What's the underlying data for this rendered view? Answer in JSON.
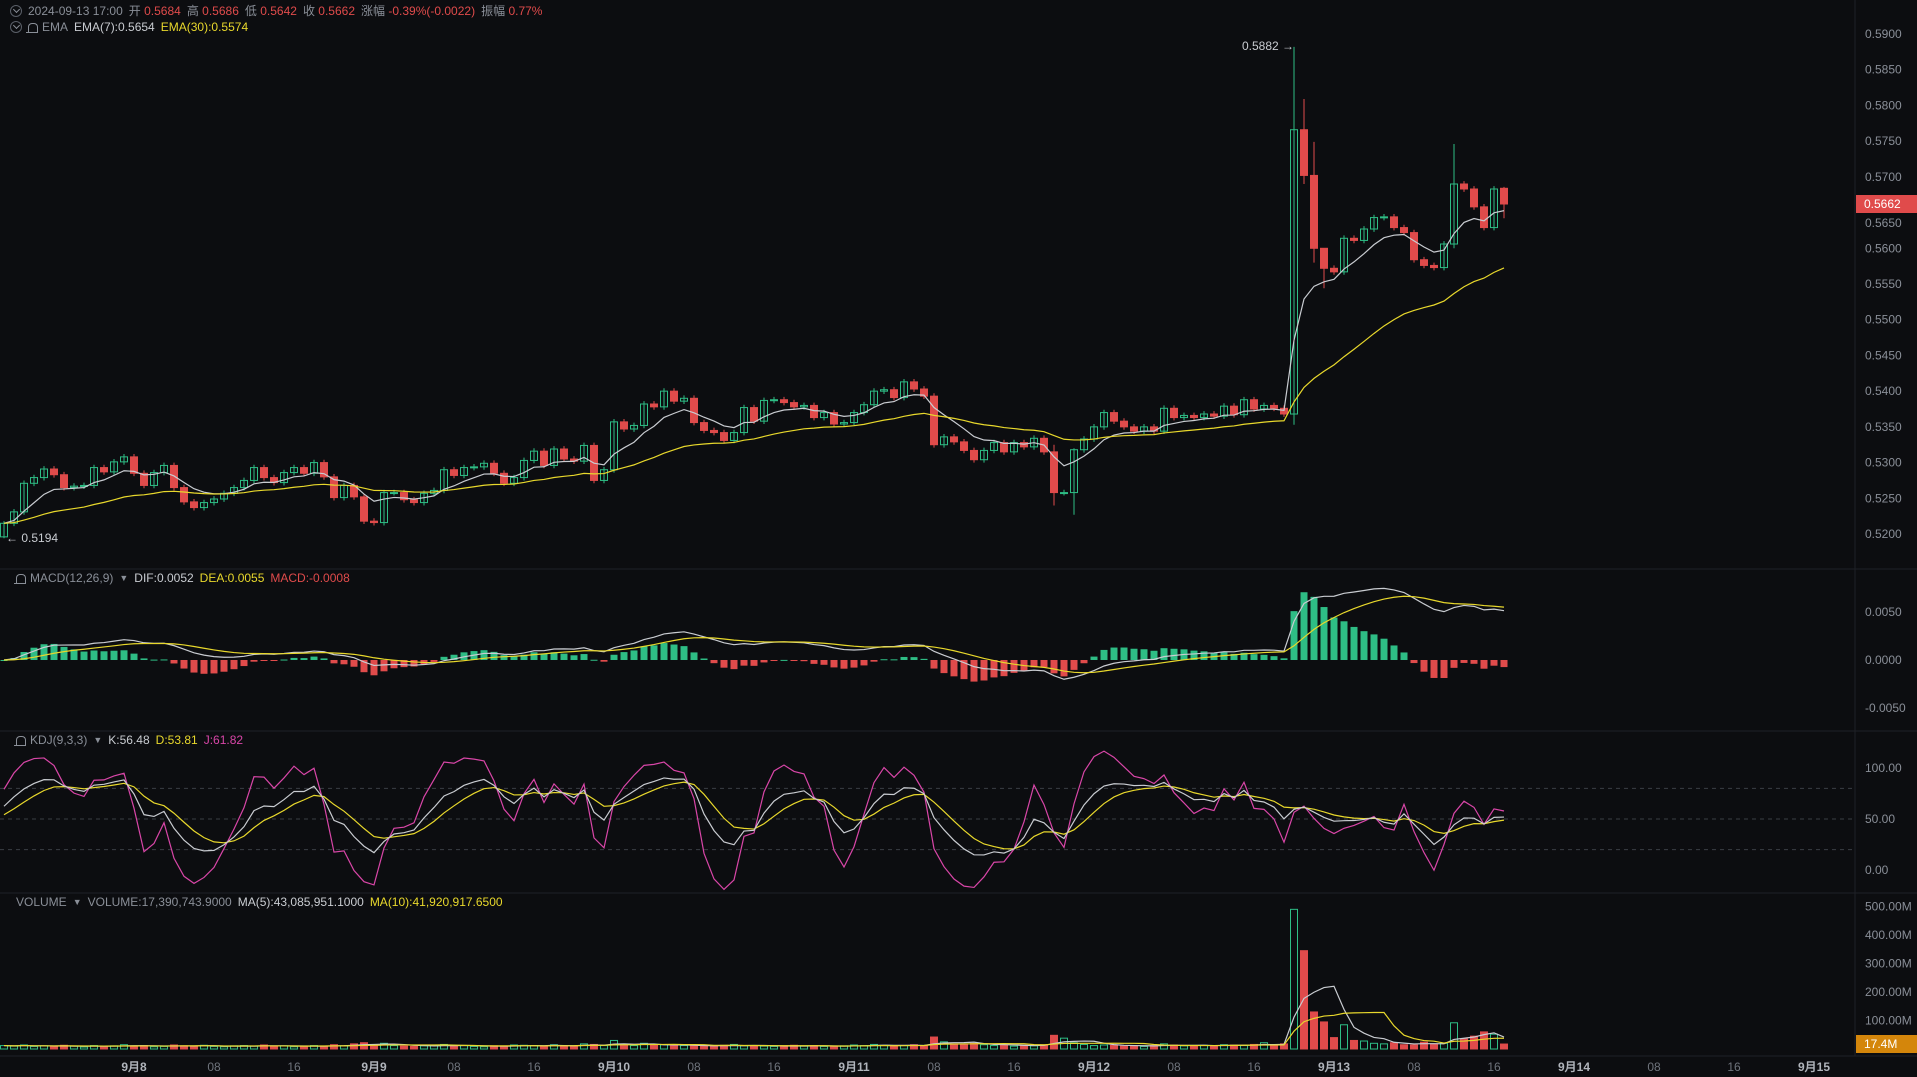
{
  "header": {
    "datetime": "2024-09-13 17:00",
    "open_label": "开",
    "open": "0.5684",
    "high_label": "高",
    "high": "0.5686",
    "low_label": "低",
    "low": "0.5642",
    "close_label": "收",
    "close": "0.5662",
    "change_label": "涨幅",
    "change": "-0.39%(-0.0022)",
    "amplitude_label": "振幅",
    "amplitude": "0.77%"
  },
  "ema": {
    "label": "EMA",
    "ema7": "EMA(7):0.5654",
    "ema30": "EMA(30):0.5574"
  },
  "macd": {
    "label": "MACD(12,26,9)",
    "dif": "DIF:0.0052",
    "dea": "DEA:0.0055",
    "macd": "MACD:-0.0008"
  },
  "kdj": {
    "label": "KDJ(9,3,3)",
    "k": "K:56.48",
    "d": "D:53.81",
    "j": "J:61.82"
  },
  "volume": {
    "label": "VOLUME",
    "volume": "VOLUME:17,390,743.9000",
    "ma5": "MA(5):43,085,951.1000",
    "ma10": "MA(10):41,920,917.6500"
  },
  "price_axis": {
    "current_price": "0.5662",
    "max_label": "0.5882 →",
    "min_label": "← 0.5194"
  },
  "volume_axis": {
    "current": "17.4M"
  },
  "colors": {
    "background": "#0c0d10",
    "up": "#2ebd85",
    "down": "#e04b4b",
    "ema7": "#c9ccd1",
    "ema30": "#e8d82c",
    "k": "#c9ccd1",
    "d": "#e8d82c",
    "j": "#d946a8",
    "volume_tag": "#d4860b",
    "price_tag": "#e04b4b"
  },
  "icons": [
    "chevron-circle-icon",
    "bell-icon",
    "caret-down-icon"
  ],
  "chart_data": {
    "type": "candlestick",
    "interval": "1h",
    "first_open": 0.5196,
    "last_open": 0.5684,
    "close": [
      0.5215,
      0.5231,
      0.5271,
      0.5279,
      0.5291,
      0.5283,
      0.5265,
      0.5267,
      0.5268,
      0.5293,
      0.5287,
      0.5301,
      0.5308,
      0.5285,
      0.5268,
      0.5286,
      0.5296,
      0.5265,
      0.5245,
      0.5237,
      0.5244,
      0.5249,
      0.5257,
      0.5265,
      0.5275,
      0.5293,
      0.5279,
      0.5272,
      0.5286,
      0.5293,
      0.5285,
      0.53,
      0.528,
      0.5251,
      0.5268,
      0.5252,
      0.5218,
      0.5216,
      0.5258,
      0.5258,
      0.5248,
      0.5244,
      0.5257,
      0.5261,
      0.529,
      0.5282,
      0.5293,
      0.5294,
      0.5299,
      0.5285,
      0.5271,
      0.5279,
      0.5303,
      0.5316,
      0.5296,
      0.5319,
      0.5305,
      0.5302,
      0.5324,
      0.5275,
      0.529,
      0.5357,
      0.5347,
      0.5352,
      0.5382,
      0.5378,
      0.54,
      0.5386,
      0.539,
      0.5356,
      0.5345,
      0.5342,
      0.5331,
      0.5342,
      0.5377,
      0.5358,
      0.5387,
      0.5388,
      0.5384,
      0.5378,
      0.538,
      0.5363,
      0.537,
      0.5354,
      0.5356,
      0.537,
      0.5381,
      0.54,
      0.5402,
      0.5391,
      0.5413,
      0.5403,
      0.5393,
      0.5325,
      0.5336,
      0.5329,
      0.5317,
      0.5304,
      0.5317,
      0.5328,
      0.5315,
      0.5328,
      0.5322,
      0.5334,
      0.5315,
      0.5258,
      0.5258,
      0.5318,
      0.5333,
      0.535,
      0.537,
      0.5358,
      0.535,
      0.5344,
      0.535,
      0.5344,
      0.5376,
      0.5363,
      0.5366,
      0.5363,
      0.5368,
      0.5365,
      0.5379,
      0.5367,
      0.5388,
      0.5375,
      0.538,
      0.5376,
      0.5368,
      0.5766,
      0.5702,
      0.56,
      0.5572,
      0.5567,
      0.5614,
      0.5611,
      0.5627,
      0.5643,
      0.5644,
      0.5629,
      0.5622,
      0.5584,
      0.5576,
      0.5573,
      0.5606,
      0.569,
      0.5683,
      0.5658,
      0.5629,
      0.5683,
      0.5662
    ],
    "wicks": [
      [
        0,
        0.5218,
        0.5194
      ],
      [
        105,
        0.5325,
        0.524
      ],
      [
        107,
        0.532,
        0.5227
      ],
      [
        129,
        0.5882,
        0.5353
      ],
      [
        130,
        0.5809,
        0.569
      ],
      [
        131,
        0.5749,
        0.558
      ],
      [
        132,
        0.56,
        0.5544
      ],
      [
        145,
        0.5746,
        0.56
      ],
      [
        150,
        0.5686,
        0.5642
      ]
    ],
    "volume_millions": [
      12,
      10,
      14,
      9,
      11,
      8,
      13,
      10,
      7,
      12,
      9,
      11,
      15,
      10,
      12,
      8,
      9,
      14,
      11,
      10,
      13,
      9,
      8,
      11,
      12,
      10,
      14,
      9,
      11,
      8,
      10,
      12,
      9,
      15,
      11,
      18,
      22,
      14,
      20,
      12,
      10,
      9,
      11,
      13,
      16,
      10,
      12,
      9,
      8,
      11,
      10,
      14,
      13,
      12,
      9,
      15,
      11,
      10,
      18,
      16,
      12,
      30,
      14,
      12,
      20,
      13,
      15,
      11,
      12,
      14,
      10,
      9,
      13,
      16,
      11,
      12,
      10,
      9,
      11,
      13,
      10,
      12,
      9,
      8,
      11,
      14,
      12,
      16,
      13,
      10,
      12,
      15,
      11,
      42,
      25,
      18,
      16,
      20,
      15,
      12,
      14,
      10,
      13,
      11,
      15,
      48,
      38,
      22,
      16,
      12,
      14,
      13,
      10,
      11,
      9,
      12,
      18,
      14,
      11,
      10,
      13,
      12,
      15,
      14,
      12,
      16,
      22,
      13,
      18,
      490,
      345,
      130,
      95,
      40,
      85,
      30,
      28,
      20,
      18,
      22,
      15,
      14,
      24,
      18,
      20,
      92,
      35,
      45,
      60,
      52,
      17.4
    ],
    "price_ticks": [
      "0.5900",
      "0.5850",
      "0.5800",
      "0.5750",
      "0.5700",
      "0.5650",
      "0.5600",
      "0.5550",
      "0.5500",
      "0.5450",
      "0.5400",
      "0.5350",
      "0.5300",
      "0.5250",
      "0.5200"
    ],
    "macd_ticks": [
      "0.0050",
      "0.0000",
      "-0.0050"
    ],
    "kdj_ticks": [
      "100.00",
      "50.00",
      "0.00"
    ],
    "volume_ticks": [
      "500.00M",
      "400.00M",
      "300.00M",
      "200.00M",
      "100.00M"
    ],
    "time_labels": [
      "9月8",
      "08",
      "16",
      "9月9",
      "08",
      "16",
      "9月10",
      "08",
      "16",
      "9月11",
      "08",
      "16",
      "9月12",
      "08",
      "16",
      "9月13",
      "08",
      "16",
      "9月14",
      "08",
      "16",
      "9月15"
    ],
    "ylim": [
      0.52,
      0.59
    ]
  }
}
